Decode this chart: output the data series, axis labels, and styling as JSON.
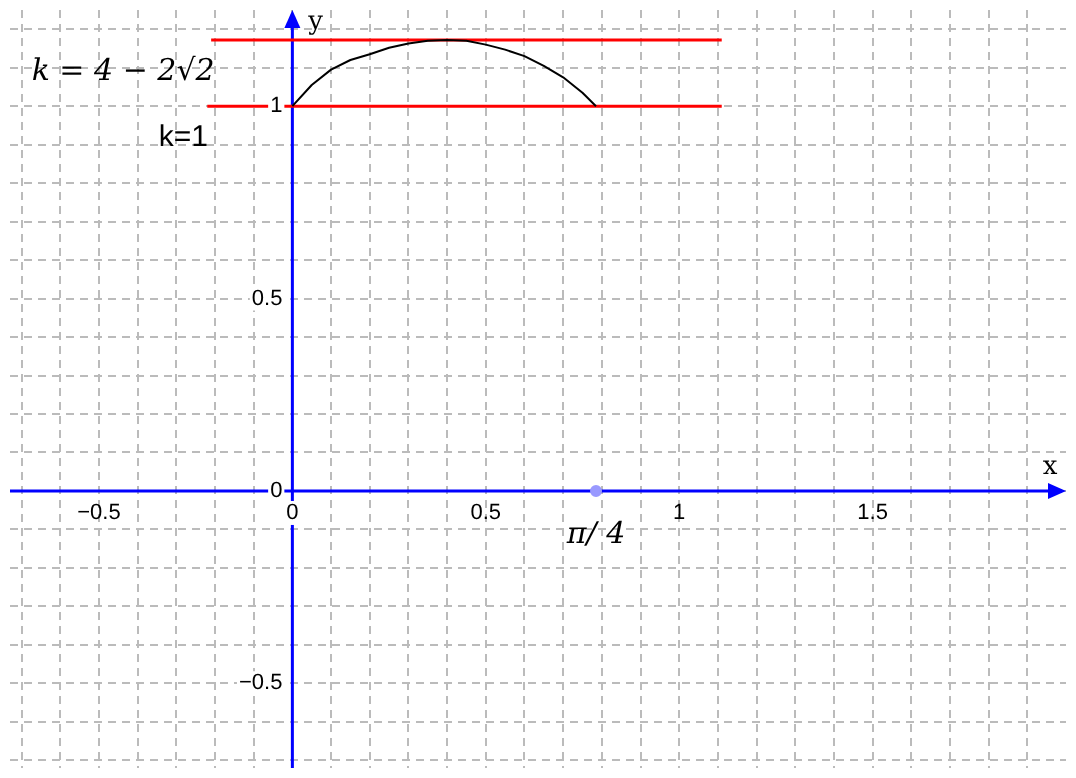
{
  "chart_data": {
    "type": "line",
    "xlabel": "x",
    "ylabel": "y",
    "xlim": [
      -0.73,
      2.0
    ],
    "ylim": [
      -0.72,
      1.25
    ],
    "xticks": [
      {
        "value": -0.7,
        "label": null
      },
      {
        "value": -0.6,
        "label": null
      },
      {
        "value": -0.5,
        "label": "−0.5"
      },
      {
        "value": -0.4,
        "label": null
      },
      {
        "value": -0.3,
        "label": null
      },
      {
        "value": -0.2,
        "label": null
      },
      {
        "value": -0.1,
        "label": null
      },
      0,
      {
        "value": 0.1,
        "label": null
      },
      {
        "value": 0.2,
        "label": null
      },
      {
        "value": 0.3,
        "label": null
      },
      {
        "value": 0.4,
        "label": null
      },
      0.5,
      {
        "value": 0.6,
        "label": null
      },
      {
        "value": 0.7,
        "label": null
      },
      {
        "value": 0.8,
        "label": null
      },
      {
        "value": 0.9,
        "label": null
      },
      1,
      {
        "value": 1.1,
        "label": null
      },
      {
        "value": 1.2,
        "label": null
      },
      {
        "value": 1.3,
        "label": null
      },
      {
        "value": 1.4,
        "label": null
      },
      1.5,
      {
        "value": 1.6,
        "label": null
      },
      {
        "value": 1.7,
        "label": null
      },
      {
        "value": 1.8,
        "label": null
      },
      {
        "value": 1.9,
        "label": null
      }
    ],
    "yticks": [
      {
        "value": -0.7,
        "label": null
      },
      {
        "value": -0.6,
        "label": null
      },
      {
        "value": -0.5,
        "label": "−0.5"
      },
      {
        "value": -0.4,
        "label": null
      },
      {
        "value": -0.3,
        "label": null
      },
      {
        "value": -0.2,
        "label": null
      },
      {
        "value": -0.1,
        "label": null
      },
      0,
      {
        "value": 0.1,
        "label": null
      },
      {
        "value": 0.2,
        "label": null
      },
      {
        "value": 0.3,
        "label": null
      },
      {
        "value": 0.4,
        "label": null
      },
      0.5,
      {
        "value": 0.6,
        "label": null
      },
      {
        "value": 0.7,
        "label": null
      },
      {
        "value": 0.8,
        "label": null
      },
      {
        "value": 0.9,
        "label": null
      },
      1,
      {
        "value": 1.1,
        "label": null
      },
      {
        "value": 1.2,
        "label": null
      }
    ],
    "grid": true,
    "legend": false,
    "series": [
      {
        "color": "#000000",
        "x": [
          0,
          0.05,
          0.1,
          0.15,
          0.2,
          0.25,
          0.3,
          0.35,
          0.4,
          0.45,
          0.5,
          0.55,
          0.6,
          0.65,
          0.7,
          0.75,
          0.785
        ],
        "values": [
          1,
          1.055,
          1.095,
          1.12,
          1.135,
          1.152,
          1.163,
          1.17,
          1.172,
          1.17,
          1.16,
          1.147,
          1.13,
          1.105,
          1.075,
          1.035,
          1
        ]
      },
      {
        "color": "#ff0000",
        "x": [
          -0.21,
          1.11
        ],
        "values": [
          1.172,
          1.172
        ]
      },
      {
        "color": "#ff0000",
        "x": [
          -0.22,
          1.11
        ],
        "values": [
          1,
          1
        ]
      },
      {
        "type": "scatter",
        "color": "#9999ff",
        "x": [
          0.785
        ],
        "values": [
          0
        ]
      }
    ],
    "annotations": [
      {
        "text": "k = 4 − 2√2",
        "x": -0.21,
        "y": 1.172
      },
      {
        "text": "k=1",
        "x": -0.22,
        "y": 1
      },
      {
        "text": "π/ 4",
        "x": 0.785,
        "y": 0
      }
    ]
  }
}
